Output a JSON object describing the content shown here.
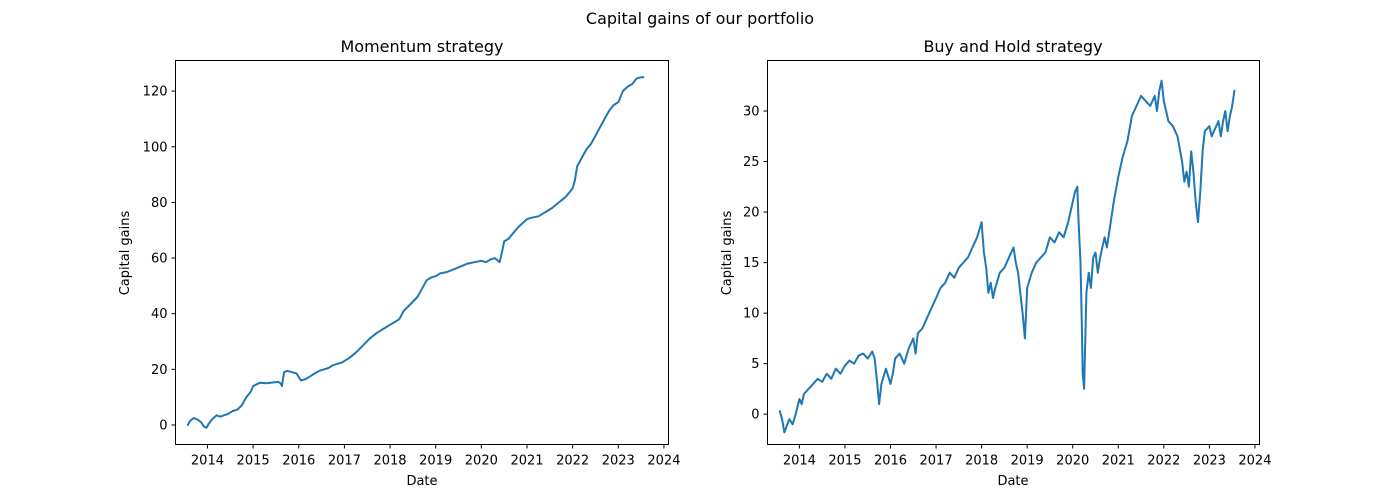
{
  "figure": {
    "suptitle": "Capital gains of our portfolio"
  },
  "chart_data": [
    {
      "type": "line",
      "title": "Momentum strategy",
      "xlabel": "Date",
      "ylabel": "Capital gains",
      "xlim": [
        2013.3,
        2024.1
      ],
      "ylim": [
        -7.0,
        131.0
      ],
      "x_ticks": [
        2014,
        2015,
        2016,
        2017,
        2018,
        2019,
        2020,
        2021,
        2022,
        2023,
        2024
      ],
      "x_tick_labels": [
        "2014",
        "2015",
        "2016",
        "2017",
        "2018",
        "2019",
        "2020",
        "2021",
        "2022",
        "2023",
        "2024"
      ],
      "y_ticks": [
        0,
        20,
        40,
        60,
        80,
        100,
        120
      ],
      "y_tick_labels": [
        "0",
        "20",
        "40",
        "60",
        "80",
        "100",
        "120"
      ],
      "grid": false,
      "color": "#1f77b4",
      "series": [
        {
          "x": [
            2013.57,
            2013.62,
            2013.7,
            2013.78,
            2013.86,
            2013.92,
            2013.98,
            2014.03,
            2014.1,
            2014.2,
            2014.28,
            2014.36,
            2014.45,
            2014.55,
            2014.65,
            2014.75,
            2014.85,
            2014.95,
            2015.0,
            2015.15,
            2015.3,
            2015.45,
            2015.55,
            2015.6,
            2015.63,
            2015.68,
            2015.75,
            2015.85,
            2015.95,
            2016.05,
            2016.15,
            2016.25,
            2016.35,
            2016.45,
            2016.55,
            2016.65,
            2016.75,
            2016.85,
            2016.95,
            2017.1,
            2017.25,
            2017.4,
            2017.55,
            2017.7,
            2017.85,
            2018.0,
            2018.1,
            2018.2,
            2018.3,
            2018.45,
            2018.6,
            2018.7,
            2018.8,
            2018.9,
            2019.0,
            2019.1,
            2019.25,
            2019.4,
            2019.55,
            2019.7,
            2019.85,
            2020.0,
            2020.1,
            2020.2,
            2020.3,
            2020.4,
            2020.45,
            2020.5,
            2020.6,
            2020.7,
            2020.8,
            2020.9,
            2021.0,
            2021.1,
            2021.25,
            2021.4,
            2021.55,
            2021.7,
            2021.85,
            2022.0,
            2022.05,
            2022.1,
            2022.2,
            2022.3,
            2022.4,
            2022.5,
            2022.6,
            2022.7,
            2022.8,
            2022.9,
            2023.0,
            2023.1,
            2023.2,
            2023.3,
            2023.4,
            2023.5,
            2023.55
          ],
          "y": [
            0,
            1.5,
            2.5,
            2.0,
            1.0,
            -0.5,
            -1.0,
            0.5,
            2.0,
            3.5,
            3.0,
            3.5,
            4.0,
            5.0,
            5.5,
            7.0,
            10.0,
            12.0,
            14.0,
            15.2,
            15.0,
            15.3,
            15.5,
            15.0,
            14.0,
            19.0,
            19.5,
            19.0,
            18.5,
            16.0,
            16.5,
            17.5,
            18.5,
            19.5,
            20.0,
            20.5,
            21.5,
            22.0,
            22.5,
            24.0,
            26.0,
            28.5,
            31.0,
            33.0,
            34.5,
            36.0,
            37.0,
            38.0,
            41.0,
            43.5,
            46.0,
            49.0,
            52.0,
            53.0,
            53.5,
            54.5,
            55.0,
            56.0,
            57.0,
            58.0,
            58.5,
            59.0,
            58.5,
            59.5,
            60.0,
            58.5,
            62.0,
            66.0,
            67.0,
            69.0,
            71.0,
            72.5,
            74.0,
            74.5,
            75.0,
            76.5,
            78.0,
            80.0,
            82.0,
            85.0,
            88.0,
            93.0,
            96.0,
            99.0,
            101.0,
            104.0,
            107.0,
            110.0,
            113.0,
            115.0,
            116.0,
            120.0,
            121.5,
            122.5,
            124.5,
            125.0,
            125.0
          ]
        }
      ]
    },
    {
      "type": "line",
      "title": "Buy and Hold strategy",
      "xlabel": "Date",
      "ylabel": "Capital gains",
      "xlim": [
        2013.3,
        2024.1
      ],
      "ylim": [
        -3.0,
        35.0
      ],
      "x_ticks": [
        2014,
        2015,
        2016,
        2017,
        2018,
        2019,
        2020,
        2021,
        2022,
        2023,
        2024
      ],
      "x_tick_labels": [
        "2014",
        "2015",
        "2016",
        "2017",
        "2018",
        "2019",
        "2020",
        "2021",
        "2022",
        "2023",
        "2024"
      ],
      "y_ticks": [
        0,
        5,
        10,
        15,
        20,
        25,
        30
      ],
      "y_tick_labels": [
        "0",
        "5",
        "10",
        "15",
        "20",
        "25",
        "30"
      ],
      "grid": false,
      "color": "#1f77b4",
      "series": [
        {
          "x": [
            2013.57,
            2013.62,
            2013.67,
            2013.72,
            2013.78,
            2013.85,
            2013.92,
            2014.0,
            2014.05,
            2014.1,
            2014.2,
            2014.3,
            2014.4,
            2014.5,
            2014.6,
            2014.7,
            2014.8,
            2014.9,
            2015.0,
            2015.1,
            2015.2,
            2015.3,
            2015.4,
            2015.5,
            2015.6,
            2015.65,
            2015.7,
            2015.75,
            2015.8,
            2015.9,
            2016.0,
            2016.05,
            2016.1,
            2016.2,
            2016.3,
            2016.4,
            2016.5,
            2016.55,
            2016.6,
            2016.7,
            2016.8,
            2016.9,
            2017.0,
            2017.1,
            2017.2,
            2017.3,
            2017.4,
            2017.5,
            2017.6,
            2017.7,
            2017.8,
            2017.9,
            2018.0,
            2018.05,
            2018.1,
            2018.15,
            2018.2,
            2018.25,
            2018.3,
            2018.4,
            2018.5,
            2018.6,
            2018.7,
            2018.75,
            2018.8,
            2018.85,
            2018.9,
            2018.95,
            2019.0,
            2019.1,
            2019.2,
            2019.3,
            2019.4,
            2019.5,
            2019.6,
            2019.7,
            2019.8,
            2019.9,
            2020.0,
            2020.05,
            2020.1,
            2020.13,
            2020.17,
            2020.2,
            2020.22,
            2020.25,
            2020.3,
            2020.35,
            2020.4,
            2020.45,
            2020.5,
            2020.55,
            2020.6,
            2020.65,
            2020.7,
            2020.75,
            2020.8,
            2020.9,
            2021.0,
            2021.1,
            2021.2,
            2021.3,
            2021.4,
            2021.5,
            2021.6,
            2021.7,
            2021.8,
            2021.85,
            2021.9,
            2021.95,
            2022.0,
            2022.05,
            2022.1,
            2022.2,
            2022.3,
            2022.4,
            2022.45,
            2022.5,
            2022.55,
            2022.6,
            2022.65,
            2022.7,
            2022.75,
            2022.8,
            2022.85,
            2022.9,
            2023.0,
            2023.05,
            2023.1,
            2023.2,
            2023.25,
            2023.3,
            2023.35,
            2023.4,
            2023.45,
            2023.5,
            2023.55
          ],
          "y": [
            0.3,
            -0.5,
            -1.8,
            -1.2,
            -0.5,
            -1.0,
            0.0,
            1.5,
            1.0,
            2.0,
            2.5,
            3.0,
            3.5,
            3.2,
            4.0,
            3.5,
            4.5,
            4.0,
            4.8,
            5.3,
            5.0,
            5.8,
            6.0,
            5.5,
            6.2,
            5.5,
            3.5,
            1.0,
            3.0,
            4.5,
            3.0,
            4.0,
            5.5,
            6.0,
            5.0,
            6.5,
            7.5,
            6.0,
            8.0,
            8.5,
            9.5,
            10.5,
            11.5,
            12.5,
            13.0,
            14.0,
            13.5,
            14.5,
            15.0,
            15.5,
            16.5,
            17.5,
            19.0,
            16.0,
            14.5,
            12.0,
            13.0,
            11.5,
            12.5,
            14.0,
            14.5,
            15.5,
            16.5,
            15.0,
            14.0,
            12.0,
            10.0,
            7.5,
            12.5,
            14.0,
            15.0,
            15.5,
            16.0,
            17.5,
            17.0,
            18.0,
            17.5,
            19.0,
            21.0,
            22.0,
            22.5,
            19.0,
            15.0,
            9.0,
            4.0,
            2.5,
            12.0,
            14.0,
            12.5,
            15.5,
            16.0,
            14.0,
            15.5,
            16.5,
            17.5,
            16.5,
            18.0,
            21.0,
            23.5,
            25.5,
            27.0,
            29.5,
            30.5,
            31.5,
            31.0,
            30.5,
            31.5,
            30.0,
            32.0,
            33.0,
            31.0,
            30.0,
            29.0,
            28.5,
            27.5,
            25.0,
            23.0,
            24.0,
            22.5,
            26.0,
            24.0,
            21.0,
            19.0,
            22.0,
            26.0,
            28.0,
            28.5,
            27.5,
            28.0,
            29.0,
            27.5,
            29.0,
            30.0,
            28.0,
            29.5,
            30.5,
            32.0
          ]
        }
      ]
    }
  ]
}
